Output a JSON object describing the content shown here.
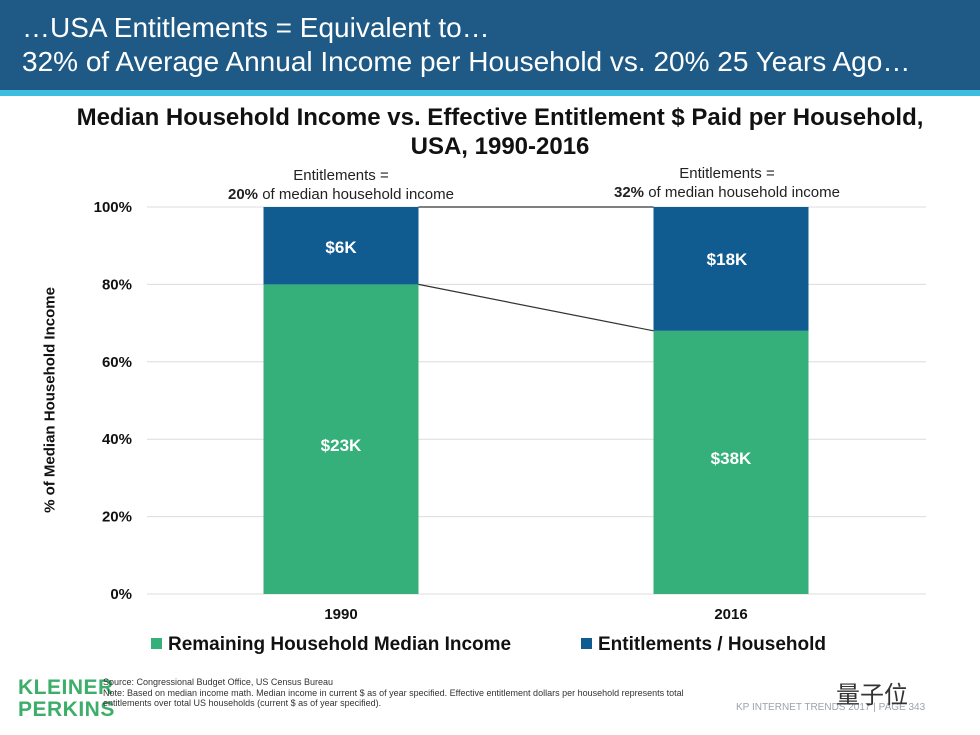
{
  "header": {
    "line1": "…USA Entitlements = Equivalent to…",
    "line2": "32% of Average Annual Income per Household vs. 20% 25 Years Ago…"
  },
  "colors": {
    "header_bg": "#1e5a85",
    "accent": "#3dbde0",
    "green": "#35b07a",
    "blue": "#105c91"
  },
  "chart_data": {
    "type": "bar",
    "stacked": true,
    "title_line1": "Median Household Income vs. Effective Entitlement $ Paid per Household,",
    "title_line2": "USA, 1990-2016",
    "ylabel": "% of Median Household Income",
    "ylim": [
      0,
      100
    ],
    "yticks": [
      0,
      20,
      40,
      60,
      80,
      100
    ],
    "ytick_labels": [
      "0%",
      "20%",
      "40%",
      "60%",
      "80%",
      "100%"
    ],
    "categories": [
      "1990",
      "2016"
    ],
    "series": [
      {
        "name": "Remaining Household Median Income",
        "values": [
          80,
          68
        ],
        "labels": [
          "$23K",
          "$38K"
        ]
      },
      {
        "name": "Entitlements / Household",
        "values": [
          20,
          32
        ],
        "labels": [
          "$6K",
          "$18K"
        ]
      }
    ],
    "annotations": [
      {
        "line1": "Entitlements =",
        "bold": "20%",
        "rest": " of median household income"
      },
      {
        "line1": "Entitlements =",
        "bold": "32%",
        "rest": " of median household income"
      }
    ],
    "legend": "bottom"
  },
  "footer": {
    "logo_line1": "KLEINER",
    "logo_line2": "PERKINS",
    "source": "Source: Congressional Budget Office, US Census Bureau",
    "note": "Note: Based on median income math. Median income in current $ as of year specified. Effective entitlement dollars per household represents total entitlements over total US households (current $ as of year specified).",
    "page_label": "KP INTERNET TRENDS 2017  |  PAGE 343",
    "watermark": "量子位"
  }
}
